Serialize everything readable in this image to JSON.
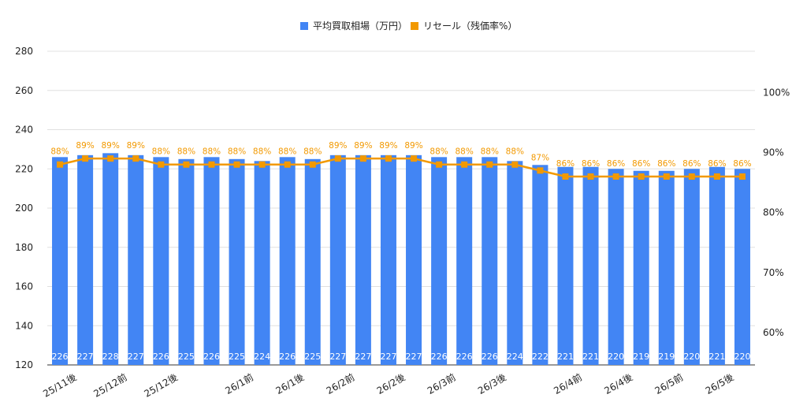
{
  "chart_data": {
    "type": "bar",
    "legend_position": "top",
    "grid": true,
    "series": [
      {
        "name": "平均買取相場（万円）",
        "axis": "left",
        "type": "bar",
        "color": "#4285f4",
        "values": [
          226,
          227,
          228,
          227,
          226,
          225,
          226,
          225,
          224,
          226,
          225,
          227,
          227,
          227,
          227,
          226,
          226,
          226,
          224,
          222,
          221,
          221,
          220,
          219,
          219,
          220,
          221,
          220
        ],
        "labels": [
          "226",
          "227",
          "228",
          "227",
          "226",
          "225",
          "226",
          "225",
          "224",
          "226",
          "225",
          "227",
          "227",
          "227",
          "227",
          "226",
          "226",
          "226",
          "224",
          "222",
          "221",
          "221",
          "220",
          "219",
          "219",
          "220",
          "221",
          "220"
        ]
      },
      {
        "name": "リセール（残価率%）",
        "axis": "right",
        "type": "line",
        "color": "#f29900",
        "values": [
          88,
          89,
          89,
          89,
          88,
          88,
          88,
          88,
          88,
          88,
          88,
          89,
          89,
          89,
          89,
          88,
          88,
          88,
          88,
          87,
          86,
          86,
          86,
          86,
          86,
          86,
          86,
          86
        ],
        "labels": [
          "88%",
          "89%",
          "89%",
          "89%",
          "88%",
          "88%",
          "88%",
          "88%",
          "88%",
          "88%",
          "88%",
          "89%",
          "89%",
          "89%",
          "89%",
          "88%",
          "88%",
          "88%",
          "88%",
          "87%",
          "86%",
          "86%",
          "86%",
          "86%",
          "86%",
          "86%",
          "86%",
          "86%"
        ]
      }
    ],
    "x_tick_labels": [
      {
        "index": 0.5,
        "label": "25/11後"
      },
      {
        "index": 2.5,
        "label": "25/12前"
      },
      {
        "index": 4.5,
        "label": "25/12後"
      },
      {
        "index": 7.5,
        "label": "26/1前"
      },
      {
        "index": 9.5,
        "label": "26/1後"
      },
      {
        "index": 11.5,
        "label": "26/2前"
      },
      {
        "index": 13.5,
        "label": "26/2後"
      },
      {
        "index": 15.5,
        "label": "26/3前"
      },
      {
        "index": 17.5,
        "label": "26/3後"
      },
      {
        "index": 20.5,
        "label": "26/4前"
      },
      {
        "index": 22.5,
        "label": "26/4後"
      },
      {
        "index": 24.5,
        "label": "26/5前"
      },
      {
        "index": 26.5,
        "label": "26/5後"
      }
    ],
    "y_left": {
      "min": 120,
      "max": 280,
      "ticks": [
        120,
        140,
        160,
        180,
        200,
        220,
        240,
        260,
        280
      ]
    },
    "y_right": {
      "min": 54.64,
      "max": 106.86,
      "ticks": [
        60,
        70,
        80,
        90,
        100
      ],
      "tick_labels": [
        "60%",
        "70%",
        "80%",
        "90%",
        "100%"
      ]
    }
  }
}
